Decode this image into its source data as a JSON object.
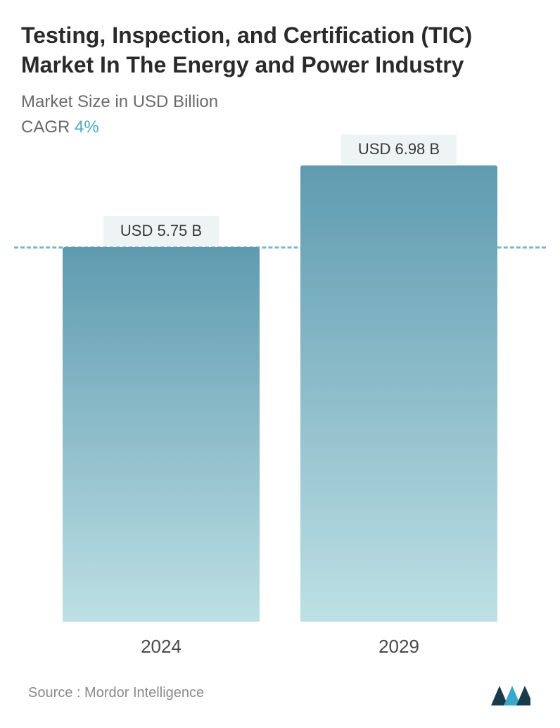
{
  "title": "Testing, Inspection, and Certification (TIC) Market In The Energy and Power Industry",
  "subtitle": "Market Size in USD Billion",
  "cagr_label": "CAGR",
  "cagr_value": "4%",
  "chart": {
    "type": "bar",
    "background_color": "#ffffff",
    "dashed_line_color": "#7ab8d0",
    "dashed_line_position_pct": 17.8,
    "bar_gradient_top": "#5f9bb0",
    "bar_gradient_bottom": "#bde0e4",
    "label_bg_color": "#eef3f4",
    "label_text_color": "#3a3a3a",
    "label_fontsize": 22,
    "x_label_color": "#4a4a4a",
    "x_label_fontsize": 26,
    "bars": [
      {
        "x_label": "2024",
        "value_label": "USD 5.75 B",
        "value": 5.75,
        "height_pct": 82.2
      },
      {
        "x_label": "2029",
        "value_label": "USD 6.98 B",
        "value": 6.98,
        "height_pct": 100
      }
    ]
  },
  "footer": {
    "source": "Source :  Mordor Intelligence",
    "logo_colors": {
      "dark": "#1a3a4a",
      "light": "#3aa8c8"
    }
  }
}
